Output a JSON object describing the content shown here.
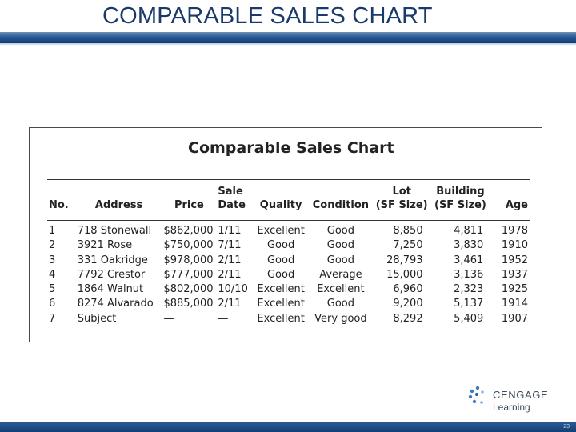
{
  "slide": {
    "title": "COMPARABLE SALES CHART",
    "page_number": "23"
  },
  "table": {
    "heading": "Comparable Sales Chart",
    "columns": [
      {
        "line1": "",
        "line2": "No."
      },
      {
        "line1": "",
        "line2": "Address"
      },
      {
        "line1": "",
        "line2": "Price"
      },
      {
        "line1": "Sale",
        "line2": "Date"
      },
      {
        "line1": "",
        "line2": "Quality"
      },
      {
        "line1": "",
        "line2": "Condition"
      },
      {
        "line1": "Lot",
        "line2": "(SF Size)"
      },
      {
        "line1": "Building",
        "line2": "(SF Size)"
      },
      {
        "line1": "",
        "line2": "Age"
      }
    ],
    "rows": [
      [
        "1",
        "718 Stonewall",
        "$862,000",
        "1/11",
        "Excellent",
        "Good",
        "8,850",
        "4,811",
        "1978"
      ],
      [
        "2",
        "3921 Rose",
        "$750,000",
        "7/11",
        "Good",
        "Good",
        "7,250",
        "3,830",
        "1910"
      ],
      [
        "3",
        "331 Oakridge",
        "$978,000",
        "2/11",
        "Good",
        "Good",
        "28,793",
        "3,461",
        "1952"
      ],
      [
        "4",
        "7792 Crestor",
        "$777,000",
        "2/11",
        "Good",
        "Average",
        "15,000",
        "3,136",
        "1937"
      ],
      [
        "5",
        "1864 Walnut",
        "$802,000",
        "10/10",
        "Excellent",
        "Excellent",
        "6,960",
        "2,323",
        "1925"
      ],
      [
        "6",
        "8274 Alvarado",
        "$885,000",
        "2/11",
        "Excellent",
        "Good",
        "9,200",
        "5,137",
        "1914"
      ],
      [
        "7",
        "Subject",
        "—",
        "—",
        "Excellent",
        "Very good",
        "8,292",
        "5,409",
        "1907"
      ]
    ]
  },
  "logo": {
    "name": "CENGAGE",
    "sub": "Learning",
    "colors": {
      "mark": "#3a7bbf",
      "text": "#3d4a5a"
    }
  },
  "colors": {
    "title": "#1a3a6b",
    "band": "#123d73"
  }
}
